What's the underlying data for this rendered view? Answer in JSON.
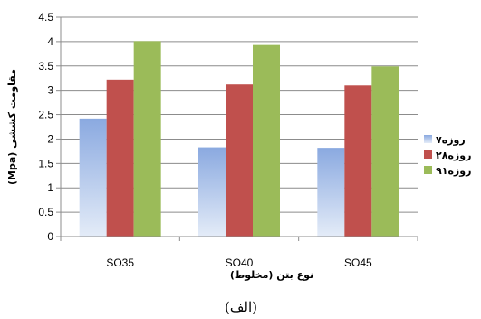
{
  "chart_data": {
    "type": "bar",
    "categories": [
      "SO35",
      "SO40",
      "SO45"
    ],
    "series": [
      {
        "name": "۷روزه",
        "values": [
          2.42,
          1.83,
          1.82
        ],
        "color": "#9db6e6"
      },
      {
        "name": "۲۸روزه",
        "values": [
          3.22,
          3.12,
          3.1
        ],
        "color": "#c0504d"
      },
      {
        "name": "۹۱روزه",
        "values": [
          4.01,
          3.93,
          3.49
        ],
        "color": "#9bbb59"
      }
    ],
    "ylim": [
      0,
      4.5
    ],
    "yticks": [
      "0",
      "0.5",
      "1",
      "1.5",
      "2",
      "2.5",
      "3",
      "3.5",
      "4",
      "4.5"
    ],
    "xlabel": "نوع بتن (مخلوط)",
    "ylabel": "مقاومت کششی (Mpa)",
    "grid": true,
    "legend_position": "right"
  },
  "caption": "(الف)"
}
